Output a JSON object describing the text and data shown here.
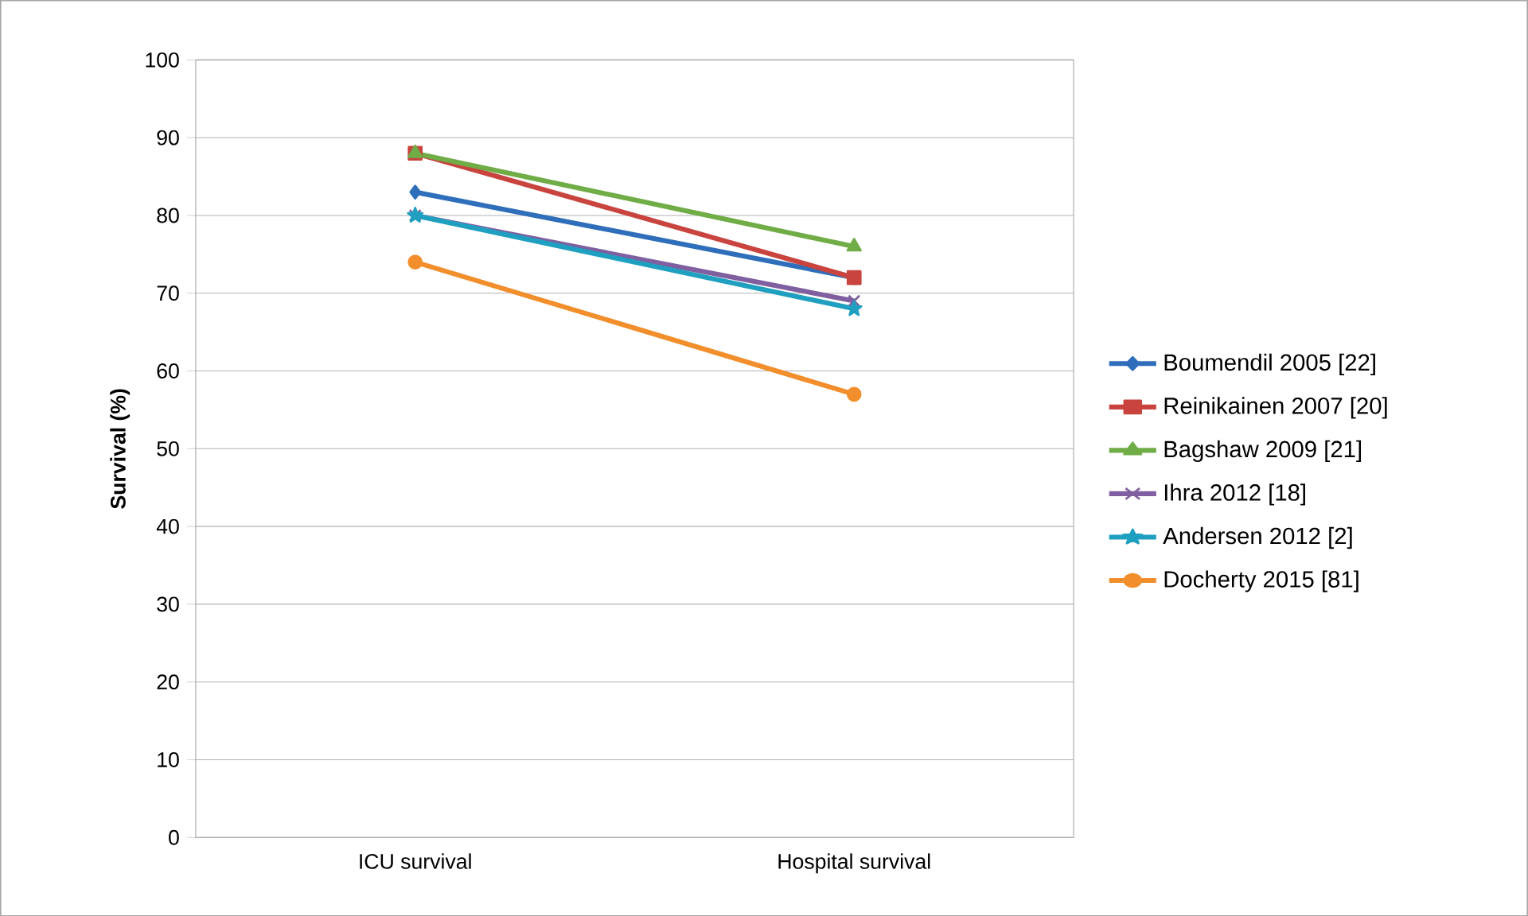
{
  "chart_data": {
    "type": "line",
    "ylabel": "Survival (%)",
    "categories": [
      "ICU survival",
      "Hospital survival"
    ],
    "ylim": [
      0,
      100
    ],
    "yticks": [
      0,
      10,
      20,
      30,
      40,
      50,
      60,
      70,
      80,
      90,
      100
    ],
    "grid": "y",
    "legend": "right",
    "line_style": "solid",
    "series": [
      {
        "name": "Boumendil 2005 [22]",
        "color": "#2f6eba",
        "marker": "diamond",
        "values": [
          83,
          72
        ]
      },
      {
        "name": "Reinikainen 2007 [20]",
        "color": "#c9443e",
        "marker": "square",
        "values": [
          88,
          72
        ]
      },
      {
        "name": "Bagshaw 2009 [21]",
        "color": "#70ad47",
        "marker": "triangle",
        "values": [
          88,
          76
        ]
      },
      {
        "name": "Ihra 2012 [18]",
        "color": "#7f5fa0",
        "marker": "cross",
        "values": [
          80,
          69
        ]
      },
      {
        "name": "Andersen 2012 [2]",
        "color": "#1fa0c0",
        "marker": "star",
        "values": [
          80,
          68
        ]
      },
      {
        "name": "Docherty 2015 [81]",
        "color": "#f28e2b",
        "marker": "circle",
        "values": [
          74,
          57
        ]
      }
    ]
  }
}
